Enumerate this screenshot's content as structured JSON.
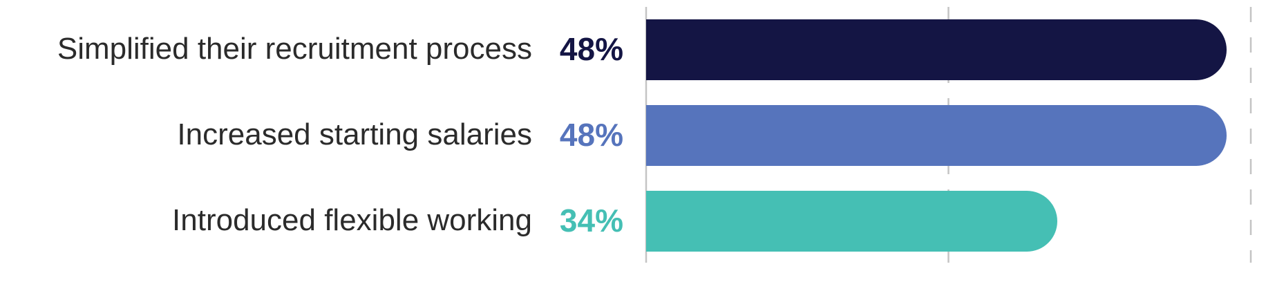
{
  "chart_data": {
    "type": "bar",
    "orientation": "horizontal",
    "categories": [
      "Simplified their recruitment process",
      "Increased starting salaries",
      "Introduced flexible working"
    ],
    "values": [
      48,
      48,
      34
    ],
    "value_labels": [
      "48%",
      "48%",
      "34%"
    ],
    "colors": [
      "#141544",
      "#5674bc",
      "#45bfb4"
    ],
    "xlim": [
      0,
      50
    ],
    "grid": true,
    "title": "",
    "xlabel": "",
    "ylabel": ""
  }
}
